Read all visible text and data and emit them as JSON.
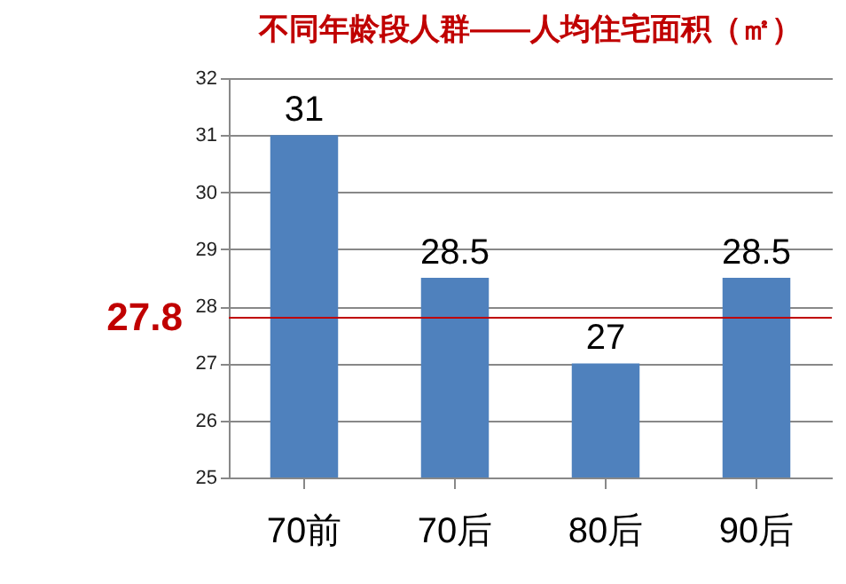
{
  "chart_data": {
    "type": "bar",
    "title": "不同年龄段人群——人均住宅面积（㎡）",
    "categories": [
      "70前",
      "70后",
      "80后",
      "90后"
    ],
    "values": [
      31,
      28.5,
      27,
      28.5
    ],
    "color": "#4f81bd",
    "data_labels": true,
    "ylim": [
      25,
      32
    ],
    "yticks": [
      25,
      26,
      27,
      28,
      29,
      30,
      31,
      32
    ],
    "grid": "y",
    "ref_lines": [
      {
        "axis": "y",
        "value": 27.8,
        "label": "27.8",
        "color": "#c00000"
      }
    ]
  }
}
